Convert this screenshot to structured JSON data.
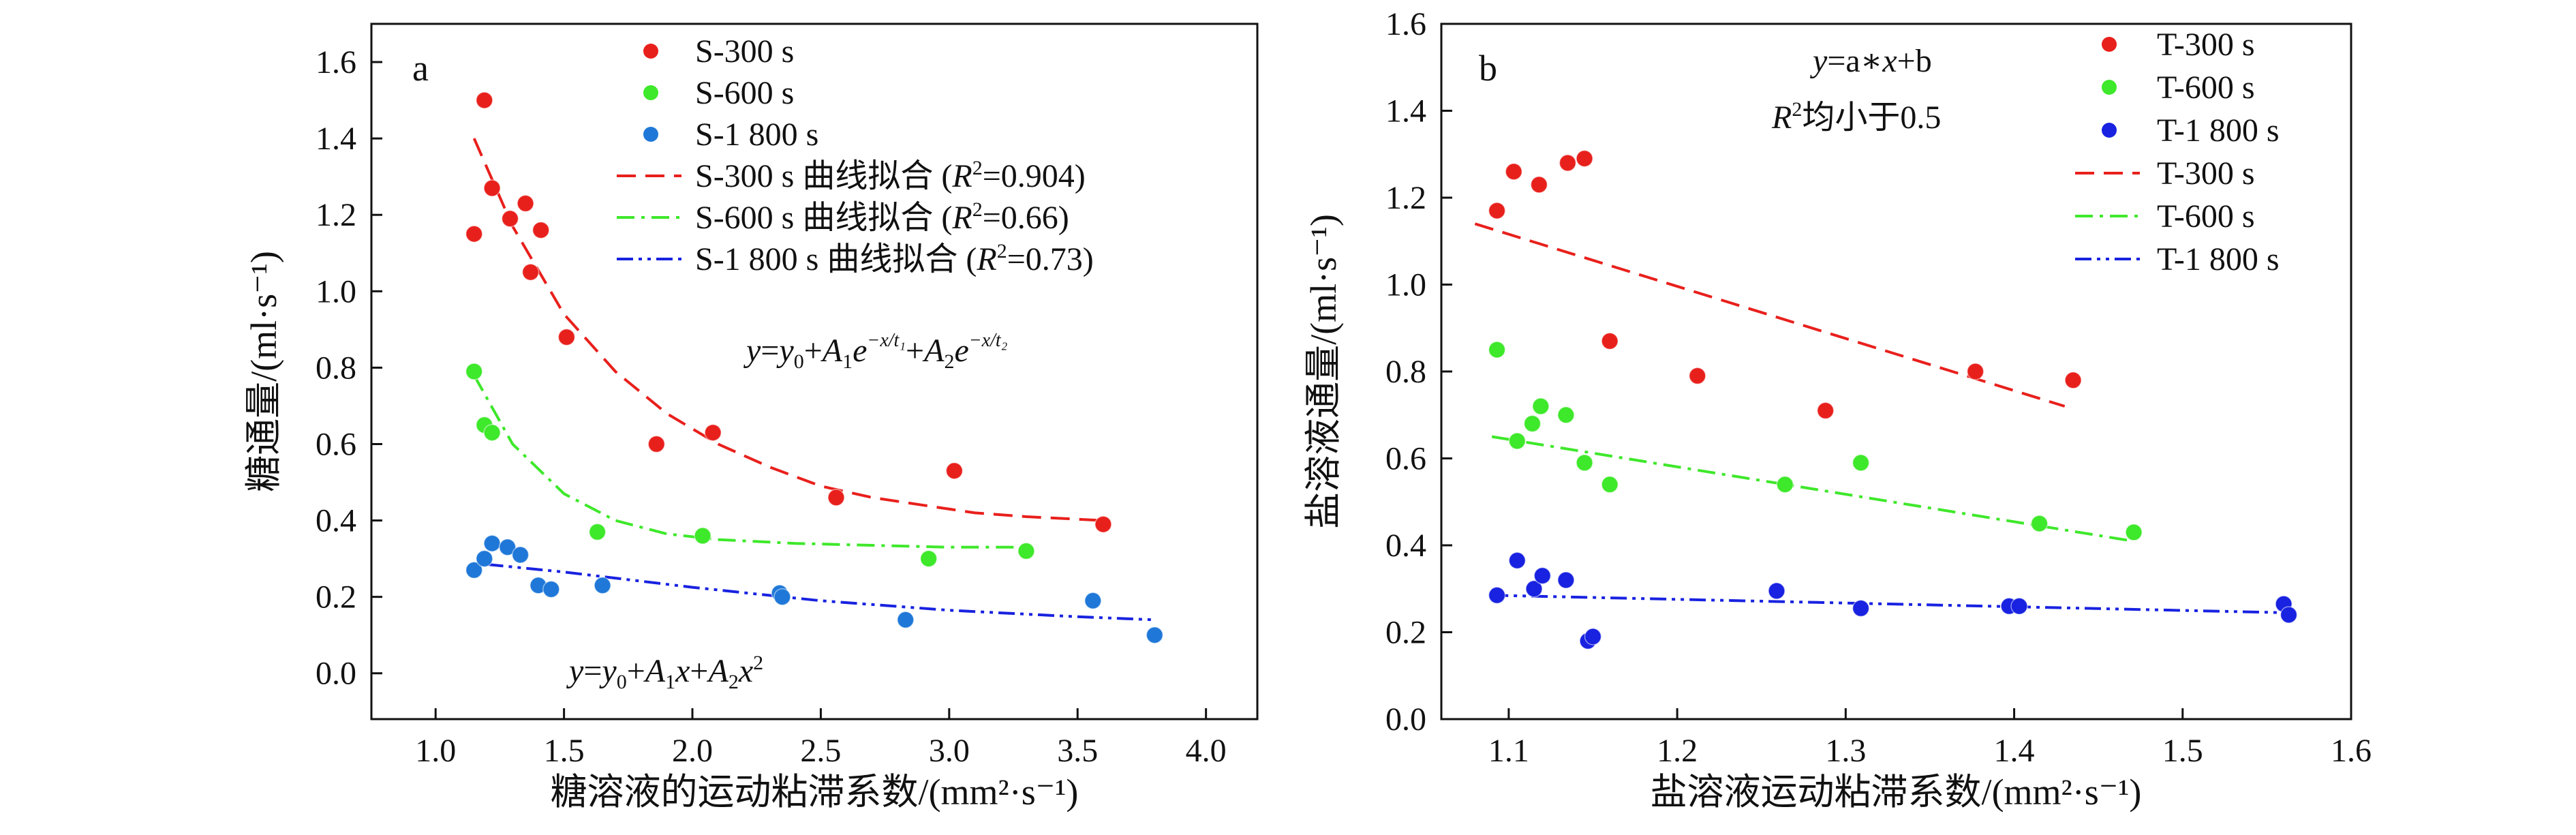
{
  "chart_data": [
    {
      "type": "scatter",
      "panel_label": "a",
      "xlabel": "糖溶液的运动粘滞系数/(mm²·s⁻¹)",
      "ylabel": "糖通量/(ml·s⁻¹)",
      "xlim": [
        0.75,
        4.2
      ],
      "ylim": [
        -0.12,
        1.7
      ],
      "xticks": [
        "1.0",
        "1.5",
        "2.0",
        "2.5",
        "3.0",
        "3.5",
        "4.0"
      ],
      "yticks": [
        "0.0",
        "0.2",
        "0.4",
        "0.6",
        "0.8",
        "1.0",
        "1.2",
        "1.4",
        "1.6"
      ],
      "xtick_values": [
        1.0,
        1.5,
        2.0,
        2.5,
        3.0,
        3.5,
        4.0
      ],
      "ytick_values": [
        0.0,
        0.2,
        0.4,
        0.6,
        0.8,
        1.0,
        1.2,
        1.4,
        1.6
      ],
      "legend_position": "top-right",
      "annotations": {
        "eq_exp": "y=y₀+A₁e^(−x/t₁)+A₂e^(−x/t₂)",
        "eq_poly": "y=y₀+A₁x+A₂x²"
      },
      "series": [
        {
          "name": "S-300 s",
          "color": "#e8201c",
          "marker": "circle",
          "x": [
            1.15,
            1.19,
            1.22,
            1.29,
            1.35,
            1.37,
            1.41,
            1.51,
            1.86,
            2.08,
            2.56,
            3.02,
            3.6
          ],
          "y": [
            1.15,
            1.5,
            1.27,
            1.19,
            1.23,
            1.05,
            1.16,
            0.88,
            0.6,
            0.63,
            0.46,
            0.53,
            0.39
          ]
        },
        {
          "name": "S-600 s",
          "color": "#3ee82a",
          "marker": "circle",
          "x": [
            1.15,
            1.19,
            1.22,
            1.63,
            2.04,
            2.92,
            3.3
          ],
          "y": [
            0.79,
            0.65,
            0.63,
            0.37,
            0.36,
            0.3,
            0.32
          ]
        },
        {
          "name": "S-1 800 s",
          "color": "#1f78d8",
          "marker": "circle",
          "x": [
            1.15,
            1.19,
            1.22,
            1.28,
            1.33,
            1.4,
            1.45,
            1.65,
            2.34,
            2.35,
            2.83,
            3.56,
            3.8
          ],
          "y": [
            0.27,
            0.3,
            0.34,
            0.33,
            0.31,
            0.23,
            0.22,
            0.23,
            0.21,
            0.2,
            0.14,
            0.19,
            0.1
          ]
        }
      ],
      "fits": [
        {
          "name": "S-300 s 曲线拟合 (R²=0.904)",
          "label_main": "S-300 s 曲线拟合 (",
          "r2": "=0.904)",
          "color": "#e8201c",
          "dash": "dash",
          "x": [
            1.15,
            1.3,
            1.5,
            1.7,
            1.9,
            2.1,
            2.3,
            2.5,
            2.7,
            2.9,
            3.1,
            3.3,
            3.6
          ],
          "y": [
            1.4,
            1.17,
            0.94,
            0.79,
            0.68,
            0.6,
            0.54,
            0.49,
            0.46,
            0.44,
            0.42,
            0.41,
            0.4
          ]
        },
        {
          "name": "S-600 s 曲线拟合 (R²=0.66)",
          "label_main": "S-600 s 曲线拟合 (",
          "r2": "=0.66)",
          "color": "#3ee82a",
          "dash": "dashdot",
          "x": [
            1.15,
            1.3,
            1.5,
            1.7,
            1.9,
            2.1,
            2.4,
            2.7,
            3.0,
            3.3
          ],
          "y": [
            0.78,
            0.6,
            0.47,
            0.4,
            0.365,
            0.35,
            0.34,
            0.335,
            0.33,
            0.33
          ]
        },
        {
          "name": "S-1 800 s 曲线拟合 (R²=0.73)",
          "label_main": "S-1 800 s 曲线拟合 (",
          "r2": "=0.73)",
          "color": "#1822e0",
          "dash": "dashdotdot",
          "x": [
            1.2,
            1.5,
            2.0,
            2.5,
            3.0,
            3.5,
            3.8
          ],
          "y": [
            0.285,
            0.265,
            0.225,
            0.19,
            0.165,
            0.148,
            0.14
          ]
        }
      ]
    },
    {
      "type": "scatter",
      "panel_label": "b",
      "xlabel": "盐溶液运动粘滞系数/(mm²·s⁻¹)",
      "ylabel": "盐溶液通量/(ml·s⁻¹)",
      "xlim": [
        1.06,
        1.6
      ],
      "ylim": [
        0.0,
        1.6
      ],
      "xticks": [
        "1.1",
        "1.2",
        "1.3",
        "1.4",
        "1.5",
        "1.6"
      ],
      "yticks": [
        "0.0",
        "0.2",
        "0.4",
        "0.6",
        "0.8",
        "1.0",
        "1.2",
        "1.4",
        "1.6"
      ],
      "xtick_values": [
        1.1,
        1.2,
        1.3,
        1.4,
        1.5,
        1.6
      ],
      "ytick_values": [
        0.0,
        0.2,
        0.4,
        0.6,
        0.8,
        1.0,
        1.2,
        1.4,
        1.6
      ],
      "legend_position": "top-right",
      "annotations": {
        "eq_linear": "y=a∗x+b",
        "r2_note": "R²均小于0.5"
      },
      "series": [
        {
          "name": "T-300 s",
          "color": "#e8201c",
          "marker": "circle",
          "x": [
            1.093,
            1.103,
            1.118,
            1.135,
            1.145,
            1.16,
            1.212,
            1.288,
            1.377,
            1.435
          ],
          "y": [
            1.17,
            1.26,
            1.23,
            1.28,
            1.29,
            0.87,
            0.79,
            0.71,
            0.8,
            0.78
          ]
        },
        {
          "name": "T-600 s",
          "color": "#3ee82a",
          "marker": "circle",
          "x": [
            1.093,
            1.105,
            1.114,
            1.119,
            1.134,
            1.145,
            1.16,
            1.264,
            1.309,
            1.415,
            1.471
          ],
          "y": [
            0.85,
            0.64,
            0.68,
            0.72,
            0.7,
            0.59,
            0.54,
            0.54,
            0.59,
            0.45,
            0.43
          ]
        },
        {
          "name": "T-1 800 s",
          "color": "#1822e0",
          "marker": "circle",
          "x": [
            1.093,
            1.105,
            1.115,
            1.12,
            1.134,
            1.147,
            1.15,
            1.259,
            1.309,
            1.397,
            1.403,
            1.56,
            1.563
          ],
          "y": [
            0.285,
            0.365,
            0.3,
            0.33,
            0.32,
            0.18,
            0.19,
            0.295,
            0.255,
            0.26,
            0.26,
            0.265,
            0.24
          ]
        }
      ],
      "fits": [
        {
          "name": "T-300 s",
          "color": "#e8201c",
          "dash": "dash",
          "x": [
            1.08,
            1.43
          ],
          "y": [
            1.14,
            0.72
          ]
        },
        {
          "name": "T-600 s",
          "color": "#3ee82a",
          "dash": "dashdot",
          "x": [
            1.09,
            1.47
          ],
          "y": [
            0.65,
            0.41
          ]
        },
        {
          "name": "T-1 800 s",
          "color": "#1822e0",
          "dash": "dashdotdot",
          "x": [
            1.09,
            1.56
          ],
          "y": [
            0.285,
            0.245
          ]
        }
      ]
    }
  ]
}
